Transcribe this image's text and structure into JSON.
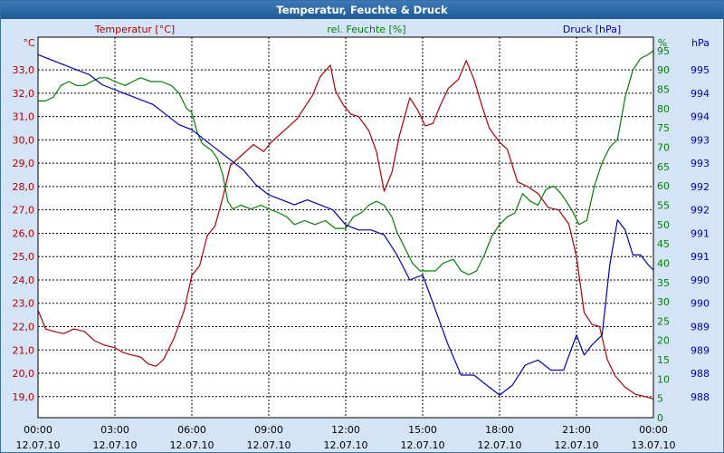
{
  "window": {
    "title": "Temperatur, Feuchte & Druck"
  },
  "chart_data": {
    "type": "line",
    "title": "Temperatur, Feuchte & Druck",
    "grid": true,
    "x_ticks": [
      {
        "time": "00:00",
        "date": "12.07.10"
      },
      {
        "time": "03:00",
        "date": "12.07.10"
      },
      {
        "time": "06:00",
        "date": "12.07.10"
      },
      {
        "time": "09:00",
        "date": "12.07.10"
      },
      {
        "time": "12:00",
        "date": "12.07.10"
      },
      {
        "time": "15:00",
        "date": "12.07.10"
      },
      {
        "time": "18:00",
        "date": "12.07.10"
      },
      {
        "time": "21:00",
        "date": "12.07.10"
      },
      {
        "time": "00:00",
        "date": "13.07.10"
      }
    ],
    "xlim": [
      0,
      24
    ],
    "axes": {
      "temperature": {
        "label": "Temperatur [°C]",
        "unit": "°C",
        "color": "#b00000",
        "ylim": [
          18.1,
          34.4
        ],
        "ticks": [
          "33,0",
          "32,0",
          "31,0",
          "30,0",
          "29,0",
          "28,0",
          "27,0",
          "26,0",
          "25,0",
          "24,0",
          "23,0",
          "22,0",
          "21,0",
          "20,0",
          "19,0"
        ]
      },
      "humidity": {
        "label": "rel. Feuchte [%]",
        "unit": "%",
        "color": "#008000",
        "ylim": [
          0,
          98.5
        ],
        "ticks": [
          "95",
          "90",
          "85",
          "80",
          "75",
          "70",
          "65",
          "60",
          "55",
          "50",
          "45",
          "40",
          "35",
          "30",
          "25",
          "20",
          "15",
          "10",
          "5",
          "0"
        ]
      },
      "pressure": {
        "label": "Druck [hPa]",
        "unit": "hPa",
        "color": "#0000b0",
        "ylim": [
          987.85,
          995.45
        ],
        "ticks": [
          "995",
          "994",
          "994",
          "993",
          "993",
          "992",
          "992",
          "991",
          "991",
          "990",
          "990",
          "989",
          "989",
          "988",
          "988"
        ]
      }
    },
    "series": [
      {
        "name": "Temperatur [°C]",
        "axis": "temperature",
        "color": "#b00000",
        "points": [
          [
            0,
            22.7
          ],
          [
            0.3,
            21.9
          ],
          [
            0.6,
            21.8
          ],
          [
            1.0,
            21.7
          ],
          [
            1.4,
            21.9
          ],
          [
            1.8,
            21.8
          ],
          [
            2.2,
            21.4
          ],
          [
            2.6,
            21.2
          ],
          [
            3.0,
            21.1
          ],
          [
            3.3,
            20.9
          ],
          [
            3.6,
            20.8
          ],
          [
            4.0,
            20.7
          ],
          [
            4.3,
            20.4
          ],
          [
            4.6,
            20.3
          ],
          [
            4.9,
            20.6
          ],
          [
            5.3,
            21.5
          ],
          [
            5.7,
            22.7
          ],
          [
            6.0,
            24.2
          ],
          [
            6.3,
            24.6
          ],
          [
            6.6,
            25.9
          ],
          [
            6.9,
            26.3
          ],
          [
            7.2,
            27.5
          ],
          [
            7.5,
            28.9
          ],
          [
            7.8,
            29.2
          ],
          [
            8.1,
            29.5
          ],
          [
            8.4,
            29.8
          ],
          [
            8.8,
            29.5
          ],
          [
            9.1,
            29.9
          ],
          [
            9.4,
            30.2
          ],
          [
            9.8,
            30.6
          ],
          [
            10.1,
            30.9
          ],
          [
            10.4,
            31.4
          ],
          [
            10.7,
            31.9
          ],
          [
            11.0,
            32.7
          ],
          [
            11.4,
            33.2
          ],
          [
            11.6,
            32.1
          ],
          [
            11.9,
            31.5
          ],
          [
            12.2,
            31.1
          ],
          [
            12.5,
            31.0
          ],
          [
            12.9,
            30.4
          ],
          [
            13.2,
            29.5
          ],
          [
            13.5,
            27.8
          ],
          [
            13.8,
            28.6
          ],
          [
            14.1,
            30.2
          ],
          [
            14.5,
            31.8
          ],
          [
            14.8,
            31.3
          ],
          [
            15.1,
            30.6
          ],
          [
            15.4,
            30.7
          ],
          [
            15.7,
            31.5
          ],
          [
            16.0,
            32.2
          ],
          [
            16.4,
            32.6
          ],
          [
            16.7,
            33.4
          ],
          [
            17.0,
            32.6
          ],
          [
            17.3,
            31.5
          ],
          [
            17.6,
            30.5
          ],
          [
            18.0,
            29.9
          ],
          [
            18.3,
            29.6
          ],
          [
            18.7,
            28.2
          ],
          [
            19.1,
            28.0
          ],
          [
            19.5,
            27.7
          ],
          [
            19.9,
            27.1
          ],
          [
            20.3,
            27.0
          ],
          [
            20.7,
            26.4
          ],
          [
            21.0,
            25.0
          ],
          [
            21.3,
            22.6
          ],
          [
            21.6,
            22.1
          ],
          [
            21.9,
            22.0
          ],
          [
            22.2,
            20.6
          ],
          [
            22.5,
            19.9
          ],
          [
            22.9,
            19.4
          ],
          [
            23.3,
            19.1
          ],
          [
            23.7,
            19.0
          ],
          [
            24.0,
            18.9
          ]
        ]
      },
      {
        "name": "rel. Feuchte [%]",
        "axis": "humidity",
        "color": "#008000",
        "points": [
          [
            0,
            82
          ],
          [
            0.3,
            82
          ],
          [
            0.6,
            83
          ],
          [
            0.9,
            86
          ],
          [
            1.2,
            87
          ],
          [
            1.5,
            86
          ],
          [
            1.8,
            86
          ],
          [
            2.1,
            87
          ],
          [
            2.4,
            88
          ],
          [
            2.7,
            88
          ],
          [
            3.0,
            87
          ],
          [
            3.4,
            86
          ],
          [
            3.7,
            87
          ],
          [
            4.0,
            88
          ],
          [
            4.4,
            87
          ],
          [
            4.8,
            87
          ],
          [
            5.2,
            86
          ],
          [
            5.5,
            84
          ],
          [
            5.8,
            80
          ],
          [
            6.0,
            79
          ],
          [
            6.2,
            74
          ],
          [
            6.4,
            71
          ],
          [
            6.6,
            70
          ],
          [
            6.8,
            69
          ],
          [
            7.0,
            67
          ],
          [
            7.2,
            63
          ],
          [
            7.4,
            56
          ],
          [
            7.6,
            54
          ],
          [
            7.9,
            55
          ],
          [
            8.3,
            54
          ],
          [
            8.7,
            55
          ],
          [
            9.0,
            54
          ],
          [
            9.4,
            53
          ],
          [
            9.7,
            52
          ],
          [
            10.0,
            50
          ],
          [
            10.4,
            51
          ],
          [
            10.8,
            50
          ],
          [
            11.2,
            51
          ],
          [
            11.6,
            49
          ],
          [
            12.0,
            49
          ],
          [
            12.3,
            52
          ],
          [
            12.6,
            53
          ],
          [
            12.9,
            55
          ],
          [
            13.2,
            56
          ],
          [
            13.5,
            55
          ],
          [
            13.8,
            52
          ],
          [
            14.0,
            48
          ],
          [
            14.3,
            44
          ],
          [
            14.6,
            40
          ],
          [
            14.9,
            38
          ],
          [
            15.2,
            38
          ],
          [
            15.5,
            38
          ],
          [
            15.8,
            40
          ],
          [
            16.2,
            41
          ],
          [
            16.5,
            38
          ],
          [
            16.8,
            37
          ],
          [
            17.1,
            38
          ],
          [
            17.4,
            42
          ],
          [
            17.7,
            47
          ],
          [
            18.0,
            50
          ],
          [
            18.3,
            52
          ],
          [
            18.6,
            53
          ],
          [
            18.9,
            58
          ],
          [
            19.2,
            56
          ],
          [
            19.5,
            55
          ],
          [
            19.8,
            59
          ],
          [
            20.1,
            60
          ],
          [
            20.4,
            58
          ],
          [
            20.8,
            54
          ],
          [
            21.1,
            50
          ],
          [
            21.4,
            51
          ],
          [
            21.7,
            60
          ],
          [
            22.0,
            66
          ],
          [
            22.3,
            70
          ],
          [
            22.6,
            72
          ],
          [
            22.9,
            83
          ],
          [
            23.2,
            90
          ],
          [
            23.5,
            93
          ],
          [
            23.8,
            94
          ],
          [
            24.0,
            95
          ]
        ]
      },
      {
        "name": "Druck [hPa]",
        "axis": "pressure",
        "color": "#0000b0",
        "points": [
          [
            0,
            995.1
          ],
          [
            0.5,
            995.0
          ],
          [
            1.0,
            994.9
          ],
          [
            1.5,
            994.8
          ],
          [
            2.0,
            994.7
          ],
          [
            2.5,
            994.5
          ],
          [
            3.0,
            994.4
          ],
          [
            3.5,
            994.3
          ],
          [
            4.0,
            994.2
          ],
          [
            4.5,
            994.1
          ],
          [
            5.0,
            993.9
          ],
          [
            5.5,
            993.7
          ],
          [
            6.0,
            993.6
          ],
          [
            6.5,
            993.4
          ],
          [
            7.0,
            993.2
          ],
          [
            7.5,
            993.0
          ],
          [
            8.0,
            992.8
          ],
          [
            8.5,
            992.5
          ],
          [
            9.0,
            992.3
          ],
          [
            9.5,
            992.2
          ],
          [
            10.0,
            992.1
          ],
          [
            10.5,
            992.2
          ],
          [
            11.0,
            992.1
          ],
          [
            11.5,
            992.0
          ],
          [
            12.0,
            991.7
          ],
          [
            12.5,
            991.6
          ],
          [
            13.0,
            991.6
          ],
          [
            13.5,
            991.5
          ],
          [
            14.0,
            991.1
          ],
          [
            14.5,
            990.6
          ],
          [
            15.0,
            990.7
          ],
          [
            15.5,
            990.0
          ],
          [
            16.0,
            989.3
          ],
          [
            16.5,
            988.7
          ],
          [
            17.0,
            988.7
          ],
          [
            17.5,
            988.5
          ],
          [
            18.0,
            988.3
          ],
          [
            18.5,
            988.5
          ],
          [
            19.0,
            988.9
          ],
          [
            19.5,
            989.0
          ],
          [
            20.0,
            988.8
          ],
          [
            20.5,
            988.8
          ],
          [
            21.0,
            989.5
          ],
          [
            21.3,
            989.1
          ],
          [
            21.6,
            989.3
          ],
          [
            22.0,
            989.5
          ],
          [
            22.3,
            990.9
          ],
          [
            22.6,
            991.8
          ],
          [
            22.9,
            991.6
          ],
          [
            23.2,
            991.1
          ],
          [
            23.5,
            991.1
          ],
          [
            23.8,
            990.9
          ],
          [
            24.0,
            990.8
          ]
        ]
      }
    ]
  }
}
